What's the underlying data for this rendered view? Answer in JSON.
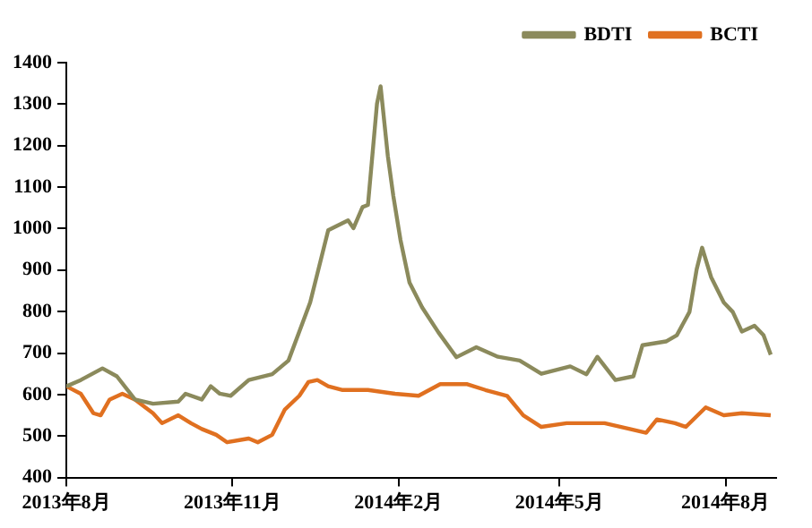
{
  "chart_data": {
    "type": "line",
    "xlim": [
      "2013-08-01",
      "2014-08-29"
    ],
    "xticks": [
      {
        "value": "2013-08",
        "label": "2013年8月"
      },
      {
        "value": "2013-11",
        "label": "2013年11月"
      },
      {
        "value": "2014-02",
        "label": "2014年2月"
      },
      {
        "value": "2014-05",
        "label": "2014年5月"
      },
      {
        "value": "2014-08",
        "label": "2014年8月"
      }
    ],
    "ylim": [
      400,
      1400
    ],
    "yticks": [
      400,
      500,
      600,
      700,
      800,
      900,
      1000,
      1100,
      1200,
      1300,
      1400
    ],
    "grid": false,
    "legend": "top right",
    "marker": "none",
    "line_style": "solid",
    "series": [
      {
        "name": "BDTI",
        "color": "#8b8a5c",
        "x": [
          "2013-08-01",
          "2013-08-09",
          "2013-08-21",
          "2013-08-29",
          "2013-09-08",
          "2013-09-18",
          "2013-10-02",
          "2013-10-06",
          "2013-10-15",
          "2013-10-20",
          "2013-10-25",
          "2013-10-31",
          "2013-11-10",
          "2013-11-23",
          "2013-12-02",
          "2013-12-08",
          "2013-12-14",
          "2013-12-24",
          "2014-01-04",
          "2014-01-07",
          "2014-01-12",
          "2014-01-15",
          "2014-01-20",
          "2014-01-22",
          "2014-01-26",
          "2014-01-29",
          "2014-02-02",
          "2014-02-07",
          "2014-02-14",
          "2014-02-23",
          "2014-03-05",
          "2014-03-16",
          "2014-03-28",
          "2014-04-09",
          "2014-04-21",
          "2014-05-07",
          "2014-05-16",
          "2014-05-22",
          "2014-06-01",
          "2014-06-11",
          "2014-06-16",
          "2014-06-29",
          "2014-07-05",
          "2014-07-12",
          "2014-07-16",
          "2014-07-19",
          "2014-07-24",
          "2014-07-31",
          "2014-08-05",
          "2014-08-10",
          "2014-08-17",
          "2014-08-22",
          "2014-08-26"
        ],
        "values": [
          620,
          635,
          663,
          644,
          588,
          578,
          583,
          602,
          588,
          620,
          602,
          597,
          635,
          649,
          682,
          752,
          822,
          996,
          1020,
          1001,
          1052,
          1057,
          1301,
          1343,
          1175,
          1080,
          973,
          870,
          810,
          750,
          690,
          714,
          691,
          682,
          650,
          668,
          649,
          691,
          635,
          644,
          719,
          728,
          743,
          799,
          902,
          954,
          883,
          822,
          799,
          752,
          766,
          743,
          696
        ]
      },
      {
        "name": "BCTI",
        "color": "#e07020",
        "x": [
          "2013-08-01",
          "2013-08-09",
          "2013-08-16",
          "2013-08-20",
          "2013-08-25",
          "2013-09-01",
          "2013-09-08",
          "2013-09-18",
          "2013-09-23",
          "2013-10-02",
          "2013-10-09",
          "2013-10-15",
          "2013-10-23",
          "2013-10-29",
          "2013-11-10",
          "2013-11-15",
          "2013-11-23",
          "2013-11-30",
          "2013-12-08",
          "2013-12-13",
          "2013-12-18",
          "2013-12-24",
          "2014-01-01",
          "2014-01-15",
          "2014-01-30",
          "2014-02-12",
          "2014-02-24",
          "2014-03-11",
          "2014-03-21",
          "2014-04-02",
          "2014-04-11",
          "2014-04-21",
          "2014-05-05",
          "2014-05-26",
          "2014-06-09",
          "2014-06-18",
          "2014-06-24",
          "2014-07-04",
          "2014-07-10",
          "2014-07-21",
          "2014-07-31",
          "2014-08-10",
          "2014-08-26"
        ],
        "values": [
          620,
          602,
          555,
          550,
          588,
          602,
          588,
          555,
          531,
          550,
          531,
          517,
          503,
          485,
          494,
          485,
          503,
          564,
          597,
          630,
          635,
          620,
          611,
          611,
          602,
          597,
          625,
          625,
          611,
          597,
          550,
          522,
          531,
          531,
          517,
          508,
          540,
          531,
          522,
          569,
          550,
          555,
          550
        ]
      }
    ]
  }
}
